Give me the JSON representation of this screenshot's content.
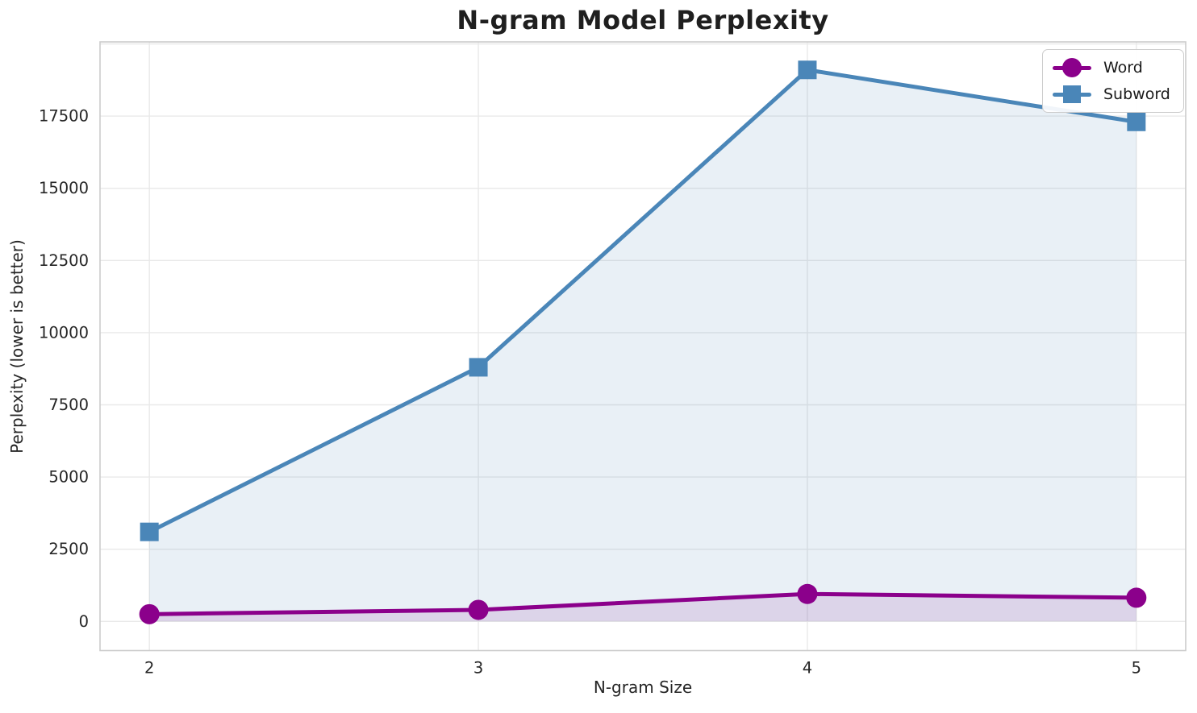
{
  "chart_data": {
    "type": "line",
    "title": "N-gram Model Perplexity",
    "xlabel": "N-gram Size",
    "ylabel": "Perplexity (lower is better)",
    "x": [
      2,
      3,
      4,
      5
    ],
    "series": [
      {
        "name": "Word",
        "values": [
          250,
          400,
          950,
          820
        ],
        "color": "#8B008B",
        "marker": "circle"
      },
      {
        "name": "Subword",
        "values": [
          3100,
          8800,
          19100,
          17300
        ],
        "color": "#4A86B8",
        "marker": "square"
      }
    ],
    "xticks": [
      "2",
      "3",
      "4",
      "5"
    ],
    "xtick_values": [
      2,
      3,
      4,
      5
    ],
    "yticks": [
      "0",
      "2500",
      "5000",
      "7500",
      "10000",
      "12500",
      "15000",
      "17500"
    ],
    "ytick_values": [
      0,
      2500,
      5000,
      7500,
      10000,
      12500,
      15000,
      17500
    ],
    "ygrid_values": [
      0,
      2500,
      5000,
      7500,
      10000,
      12500,
      15000,
      17500,
      20000
    ],
    "xlim": [
      1.85,
      5.15
    ],
    "ylim": [
      -1010,
      20070
    ],
    "grid": true,
    "area_fill_to": 0,
    "fill_opacity": 0.12,
    "legend_position": "top-right",
    "grid_color": "#E9E9E9",
    "spine_color": "#CCCCCC",
    "tick_color": "#262626"
  }
}
